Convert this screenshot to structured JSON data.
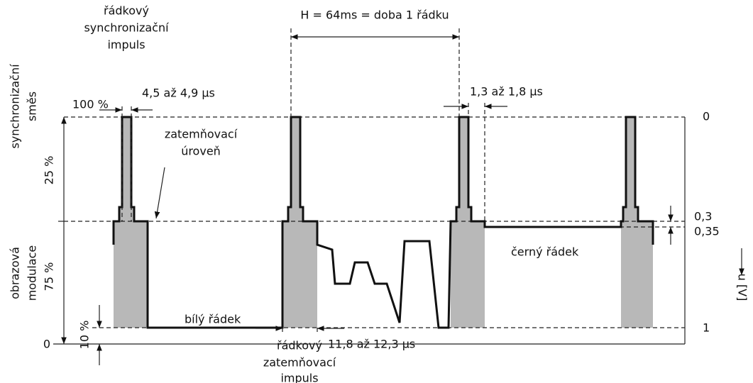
{
  "sync_pulse_label": [
    "řádkový",
    "synchronizační",
    "impuls"
  ],
  "sync_pulse_width": "4,5 až 4,9 µs",
  "line_period": "H = 64ms = doba 1 řádku",
  "back_porch": "1,3 až 1,8 µs",
  "sync_mix_label": [
    "synchronizační",
    "směs"
  ],
  "picture_modulation_label": [
    "obrazová",
    "modulace"
  ],
  "blanking_level_label": [
    "zatemňovací",
    "úroveň"
  ],
  "left_scale": {
    "top": "100 %",
    "sync": "25 %",
    "video": "75 %",
    "white": "10 %",
    "zero": "0"
  },
  "right_scale": {
    "sync": "0",
    "blank": "0,3",
    "black": "0,35",
    "white": "1",
    "axis": "u [V]"
  },
  "white_line": "bílý řádek",
  "black_line": "černý řádek",
  "blanking_pulse_width": "11,8 až 12,3 µs",
  "blanking_pulse_label": [
    "řádkový",
    "zatemňovací",
    "impuls"
  ]
}
